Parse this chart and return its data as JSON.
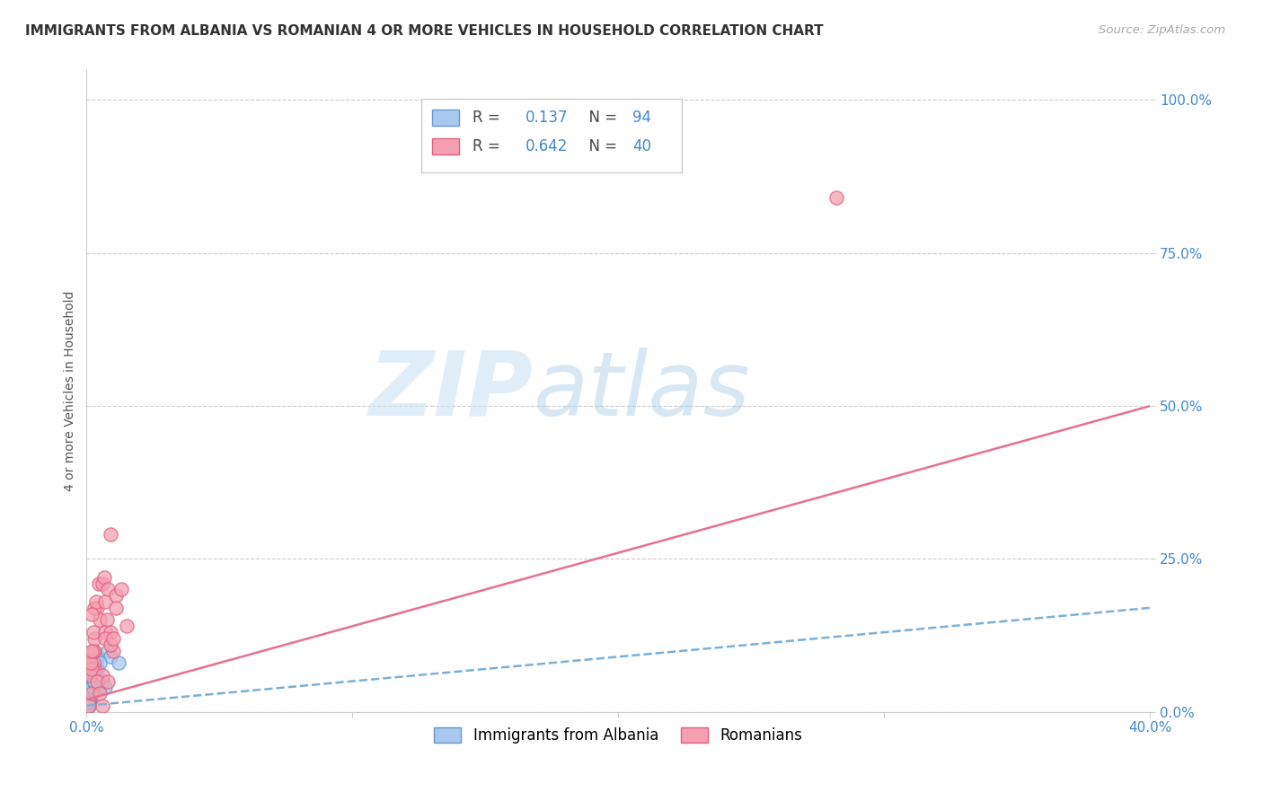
{
  "title": "IMMIGRANTS FROM ALBANIA VS ROMANIAN 4 OR MORE VEHICLES IN HOUSEHOLD CORRELATION CHART",
  "source": "Source: ZipAtlas.com",
  "ylabel": "4 or more Vehicles in Household",
  "yticks": [
    0.0,
    0.25,
    0.5,
    0.75,
    1.0
  ],
  "ytick_labels": [
    "0.0%",
    "25.0%",
    "50.0%",
    "75.0%",
    "100.0%"
  ],
  "xticks": [
    0.0,
    0.1,
    0.2,
    0.3,
    0.4
  ],
  "xtick_labels": [
    "0.0%",
    "",
    "",
    "",
    "40.0%"
  ],
  "xlim": [
    0.0,
    0.4
  ],
  "ylim": [
    0.0,
    1.05
  ],
  "legend_albania": {
    "R": 0.137,
    "N": 94
  },
  "legend_romanian": {
    "R": 0.642,
    "N": 40
  },
  "albania_color": "#a8c8f0",
  "romanian_color": "#f4a0b0",
  "albania_edge_color": "#6699cc",
  "romanian_edge_color": "#e06080",
  "albania_line_color": "#7ab0d8",
  "romanian_line_color": "#e87090",
  "albania_x": [
    0.0005,
    0.001,
    0.0015,
    0.0008,
    0.002,
    0.0012,
    0.0007,
    0.0009,
    0.0011,
    0.0006,
    0.001,
    0.0008,
    0.0013,
    0.0009,
    0.0007,
    0.0011,
    0.0006,
    0.001,
    0.0014,
    0.0008,
    0.0005,
    0.0009,
    0.0012,
    0.001,
    0.0006,
    0.0008,
    0.0011,
    0.0009,
    0.0007,
    0.0008,
    0.0012,
    0.001,
    0.0008,
    0.0005,
    0.001,
    0.0009,
    0.0006,
    0.0008,
    0.001,
    0.0005,
    0.0007,
    0.0005,
    0.0009,
    0.0008,
    0.0005,
    0.001,
    0.0007,
    0.0009,
    0.0005,
    0.0007,
    0.0005,
    0.0009,
    0.0007,
    0.0005,
    0.0007,
    0.0009,
    0.0005,
    0.0007,
    0.0005,
    0.0009,
    0.0007,
    0.0005,
    0.0007,
    0.0009,
    0.0005,
    0.0007,
    0.0005,
    0.0007,
    0.0009,
    0.0005,
    0.0025,
    0.003,
    0.0035,
    0.003,
    0.002,
    0.0025,
    0.003,
    0.0005,
    0.0007,
    0.0005,
    0.004,
    0.003,
    0.0035,
    0.0005,
    0.0007,
    0.005,
    0.006,
    0.007,
    0.008,
    0.009,
    0.012,
    0.003,
    0.004,
    0.005
  ],
  "albania_y": [
    0.02,
    0.03,
    0.04,
    0.01,
    0.03,
    0.025,
    0.015,
    0.02,
    0.025,
    0.01,
    0.02,
    0.015,
    0.03,
    0.02,
    0.015,
    0.025,
    0.01,
    0.02,
    0.03,
    0.015,
    0.01,
    0.015,
    0.025,
    0.02,
    0.01,
    0.015,
    0.02,
    0.02,
    0.01,
    0.015,
    0.025,
    0.02,
    0.015,
    0.01,
    0.02,
    0.02,
    0.01,
    0.015,
    0.02,
    0.01,
    0.015,
    0.01,
    0.02,
    0.015,
    0.01,
    0.02,
    0.015,
    0.02,
    0.01,
    0.015,
    0.01,
    0.02,
    0.015,
    0.01,
    0.015,
    0.02,
    0.01,
    0.015,
    0.01,
    0.02,
    0.015,
    0.01,
    0.015,
    0.02,
    0.01,
    0.015,
    0.01,
    0.015,
    0.02,
    0.01,
    0.06,
    0.07,
    0.08,
    0.07,
    0.04,
    0.05,
    0.06,
    0.01,
    0.015,
    0.01,
    0.09,
    0.06,
    0.07,
    0.01,
    0.015,
    0.04,
    0.05,
    0.04,
    0.1,
    0.09,
    0.08,
    0.05,
    0.07,
    0.08
  ],
  "romanian_x": [
    0.001,
    0.002,
    0.003,
    0.0015,
    0.0025,
    0.003,
    0.002,
    0.0015,
    0.0025,
    0.003,
    0.002,
    0.0025,
    0.004,
    0.003,
    0.0045,
    0.005,
    0.0035,
    0.006,
    0.0065,
    0.006,
    0.004,
    0.007,
    0.008,
    0.009,
    0.0075,
    0.007,
    0.011,
    0.009,
    0.01,
    0.007,
    0.005,
    0.006,
    0.008,
    0.009,
    0.01,
    0.011,
    0.013,
    0.015,
    0.282,
    0.002
  ],
  "romanian_y": [
    0.01,
    0.03,
    0.07,
    0.06,
    0.08,
    0.1,
    0.07,
    0.08,
    0.1,
    0.12,
    0.1,
    0.13,
    0.17,
    0.17,
    0.21,
    0.15,
    0.18,
    0.21,
    0.22,
    0.06,
    0.05,
    0.18,
    0.2,
    0.29,
    0.15,
    0.13,
    0.19,
    0.13,
    0.1,
    0.12,
    0.03,
    0.01,
    0.05,
    0.11,
    0.12,
    0.17,
    0.2,
    0.14,
    0.84,
    0.16
  ]
}
